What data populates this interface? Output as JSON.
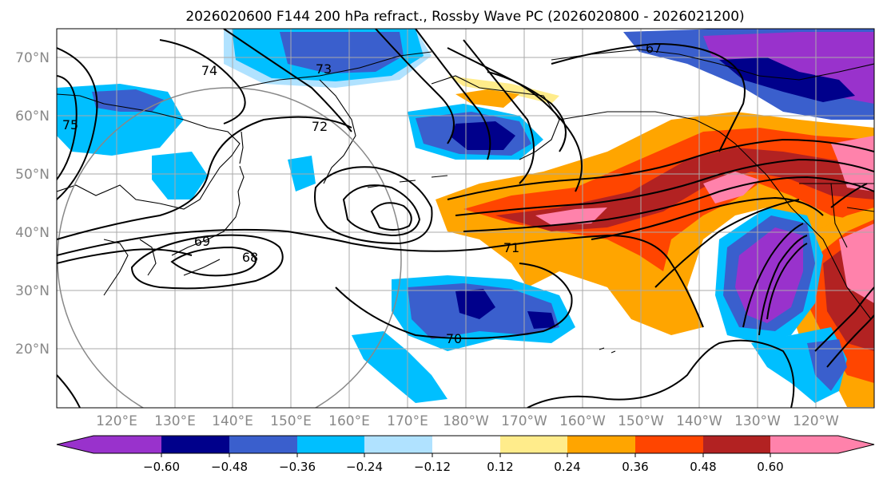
{
  "title": "2026020600 F144 200 hPa refract., Rossby Wave PC (2026020800 - 2026021200)",
  "map": {
    "lat_ticks": [
      "20°N",
      "30°N",
      "40°N",
      "50°N",
      "60°N",
      "70°N"
    ],
    "lon_ticks": [
      "120°E",
      "130°E",
      "140°E",
      "150°E",
      "160°E",
      "170°E",
      "180°W",
      "170°W",
      "160°W",
      "150°W",
      "140°W",
      "130°W",
      "120°W"
    ],
    "contour_labels": [
      "67",
      "68",
      "69",
      "70",
      "71",
      "72",
      "73",
      "74",
      "75"
    ]
  },
  "colorbar": {
    "ticks": [
      "−0.60",
      "−0.48",
      "−0.36",
      "−0.24",
      "−0.12",
      "0.12",
      "0.24",
      "0.36",
      "0.48",
      "0.60"
    ],
    "colors": [
      "#9932cc",
      "#00008b",
      "#3a5fcd",
      "#00bfff",
      "#b0e2ff",
      "#ffffff",
      "#ffec8b",
      "#ffa500",
      "#ff4500",
      "#b22222",
      "#ff82ab"
    ]
  }
}
